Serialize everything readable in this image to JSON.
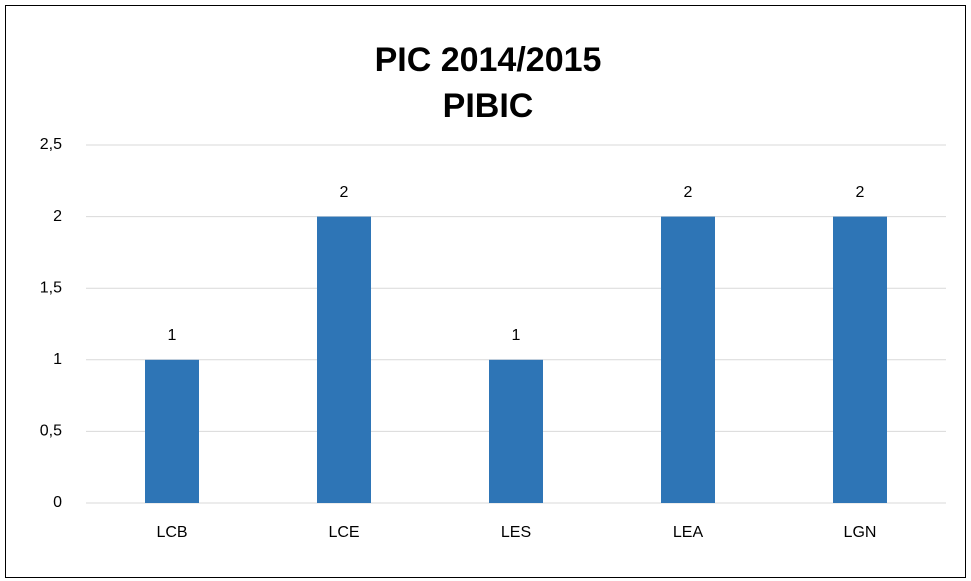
{
  "chart_data": {
    "type": "bar",
    "title": "PIC 2014/2015",
    "subtitle": "PIBIC",
    "categories": [
      "LCB",
      "LCE",
      "LES",
      "LEA",
      "LGN"
    ],
    "values": [
      1,
      2,
      1,
      2,
      2
    ],
    "color": "#2e75b6",
    "ylim": [
      0,
      2.5
    ],
    "yticks": [
      0,
      {
        "value": 0.5,
        "label": "0,5"
      },
      1,
      {
        "value": 1.5,
        "label": "1,5"
      },
      2,
      {
        "value": 2.5,
        "label": "2,5"
      }
    ],
    "grid": true
  }
}
